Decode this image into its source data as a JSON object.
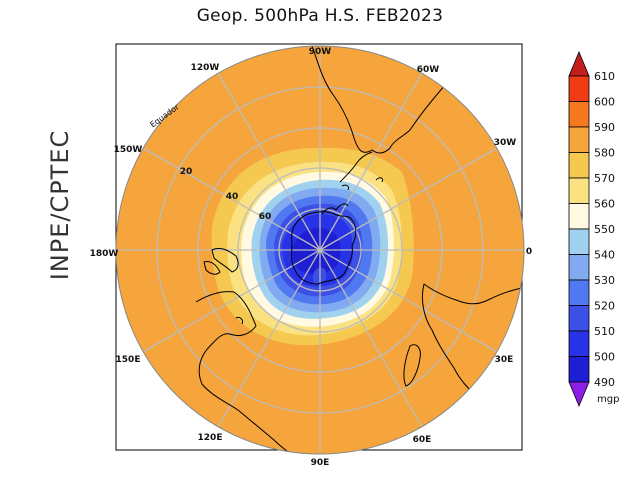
{
  "title": "Geop. 500hPa H.S. FEB2023",
  "side_label": "INPE/CPTEC",
  "map": {
    "projection": "south-polar-stereographic",
    "longitude_labels": [
      "90W",
      "60W",
      "30W",
      "0",
      "30E",
      "60E",
      "90E",
      "120E",
      "150E",
      "180W",
      "150W",
      "120W"
    ],
    "latitude_labels": [
      "Equador",
      "20",
      "40",
      "60"
    ],
    "colors": {
      "land_outline": "#000000",
      "grid": "#bcbcbc"
    }
  },
  "colorbar": {
    "unit": "mgp",
    "levels": [
      "610",
      "600",
      "590",
      "580",
      "570",
      "560",
      "550",
      "540",
      "530",
      "520",
      "510",
      "500",
      "490"
    ],
    "colors": [
      "#c41e1e",
      "#f03c14",
      "#f5781e",
      "#f5a53c",
      "#f5c850",
      "#fae182",
      "#fffae1",
      "#a0d2f0",
      "#82aaf0",
      "#5078f0",
      "#3c50e6",
      "#2832e6",
      "#1e1ed2",
      "#8c1ee6"
    ]
  }
}
